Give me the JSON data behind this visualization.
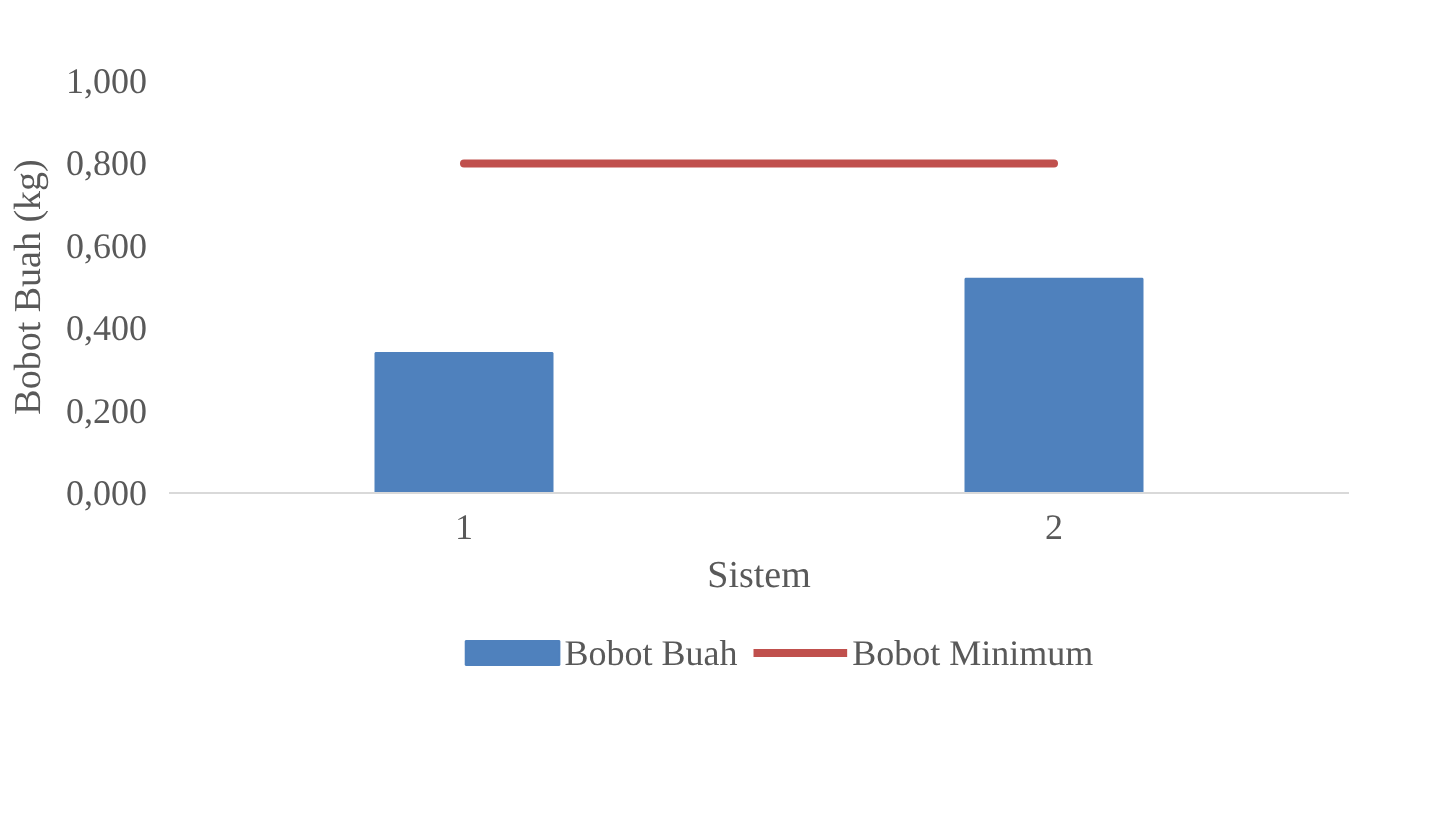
{
  "chart_data": {
    "type": "bar",
    "xlabel": "Sistem",
    "ylabel": "Bobot Buah (kg)",
    "categories": [
      "1",
      "2"
    ],
    "series": [
      {
        "name": "Bobot Buah",
        "color": "#4f81bd",
        "values": [
          0.34,
          0.52
        ]
      },
      {
        "name": "Bobot Minimum",
        "type": "line",
        "color": "#c0504d",
        "values": [
          0.8,
          0.8
        ]
      }
    ],
    "ylim": [
      0,
      1
    ],
    "yticks": [
      {
        "value": 0,
        "label": "0,000"
      },
      {
        "value": 0.2,
        "label": "0,200"
      },
      {
        "value": 0.4,
        "label": "0,400"
      },
      {
        "value": 0.6,
        "label": "0,600"
      },
      {
        "value": 0.8,
        "label": "0,800"
      },
      {
        "value": 1,
        "label": "1,000"
      }
    ],
    "grid": false,
    "legend": "bottom",
    "marker": "none",
    "line_style": "solid"
  }
}
